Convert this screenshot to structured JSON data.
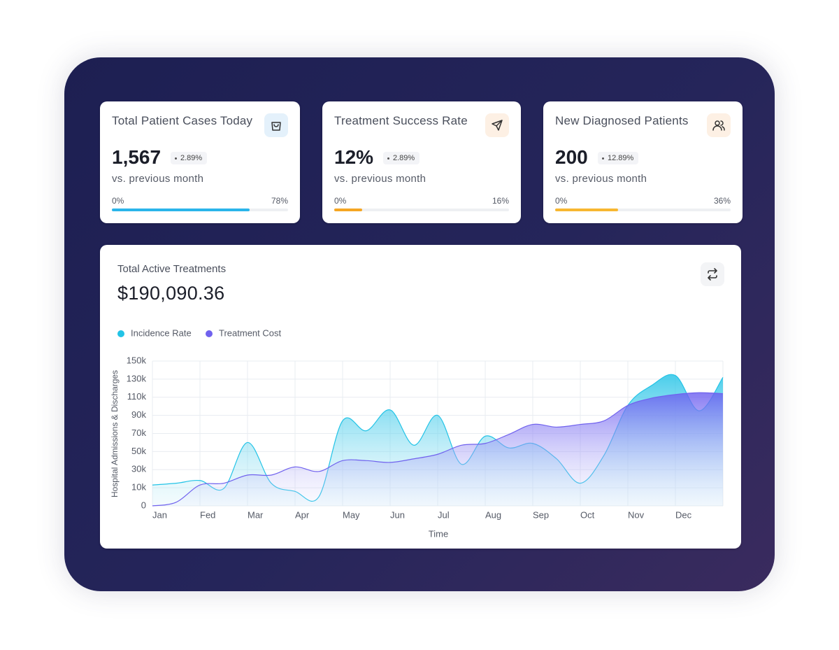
{
  "cards": [
    {
      "title": "Total Patient Cases Today",
      "value": "1,567",
      "change": "2.89%",
      "comparison": "vs. previous month",
      "progress_start": {
        "value": 0,
        "label": "0%"
      },
      "progress": {
        "value": 78,
        "label": "78%"
      },
      "color": "#2bb5ea"
    },
    {
      "title": "Treatment Success Rate",
      "value": "12%",
      "change": "2.89%",
      "comparison": "vs. previous month",
      "progress_start": {
        "value": 0,
        "label": "0%"
      },
      "progress": {
        "value": 16,
        "label": "16%"
      },
      "color": "#f5a623"
    },
    {
      "title": "New Diagnosed Patients",
      "value": "200",
      "change": "12.89%",
      "comparison": "vs. previous month",
      "progress_start": {
        "value": 0,
        "label": "0%"
      },
      "progress": {
        "value": 36,
        "label": "36%"
      },
      "color": "#f7b731"
    }
  ],
  "panel": {
    "title": "Total Active Treatments",
    "value": "$190,090.36"
  },
  "chart_data": {
    "type": "area",
    "x": [
      0,
      0.5,
      1,
      1.5,
      2,
      2.5,
      3,
      3.5,
      4,
      4.5,
      5,
      5.5,
      6,
      6.5,
      7,
      7.5,
      8,
      8.5,
      9,
      9.5,
      10,
      10.5,
      11,
      11.5,
      12
    ],
    "series": [
      {
        "name": "Incidence Rate",
        "color": "#22c3e6",
        "values": [
          13000,
          15000,
          18000,
          9600,
          60000,
          15000,
          8000,
          5000,
          84000,
          73000,
          96000,
          57000,
          90000,
          36000,
          67000,
          54000,
          59000,
          42000,
          15000,
          46000,
          101000,
          123000,
          134000,
          95000,
          132000
        ]
      },
      {
        "name": "Treatment Cost",
        "color": "#7062ee",
        "values": [
          0,
          2000,
          13000,
          15000,
          24000,
          24000,
          33000,
          28000,
          40000,
          40000,
          38000,
          42000,
          47000,
          57000,
          59000,
          69000,
          80000,
          77000,
          80000,
          84000,
          101000,
          109000,
          113000,
          115000,
          114000
        ]
      }
    ],
    "xlim": [
      0,
      12
    ],
    "xticks": [
      {
        "value": 0,
        "label": "Jan"
      },
      {
        "value": 1,
        "label": "Fed"
      },
      {
        "value": 2,
        "label": "Mar"
      },
      {
        "value": 3,
        "label": "Apr"
      },
      {
        "value": 4,
        "label": "May"
      },
      {
        "value": 5,
        "label": "Jun"
      },
      {
        "value": 6,
        "label": "Jul"
      },
      {
        "value": 7,
        "label": "Aug"
      },
      {
        "value": 8,
        "label": "Sep"
      },
      {
        "value": 9,
        "label": "Oct"
      },
      {
        "value": 10,
        "label": "Nov"
      },
      {
        "value": 11,
        "label": "Dec"
      }
    ],
    "ylim": [
      0,
      150000
    ],
    "yticks": [
      0,
      {
        "value": 10000,
        "label": "10k"
      },
      {
        "value": 30000,
        "label": "30k"
      },
      {
        "value": 50000,
        "label": "50k"
      },
      {
        "value": 70000,
        "label": "70k"
      },
      {
        "value": 90000,
        "label": "90k"
      },
      {
        "value": 110000,
        "label": "110k"
      },
      {
        "value": 130000,
        "label": "130k"
      },
      {
        "value": 150000,
        "label": "150k"
      }
    ],
    "xlabel": "Time",
    "ylabel": "Hospital Admissions & Discharges",
    "grid": true
  }
}
